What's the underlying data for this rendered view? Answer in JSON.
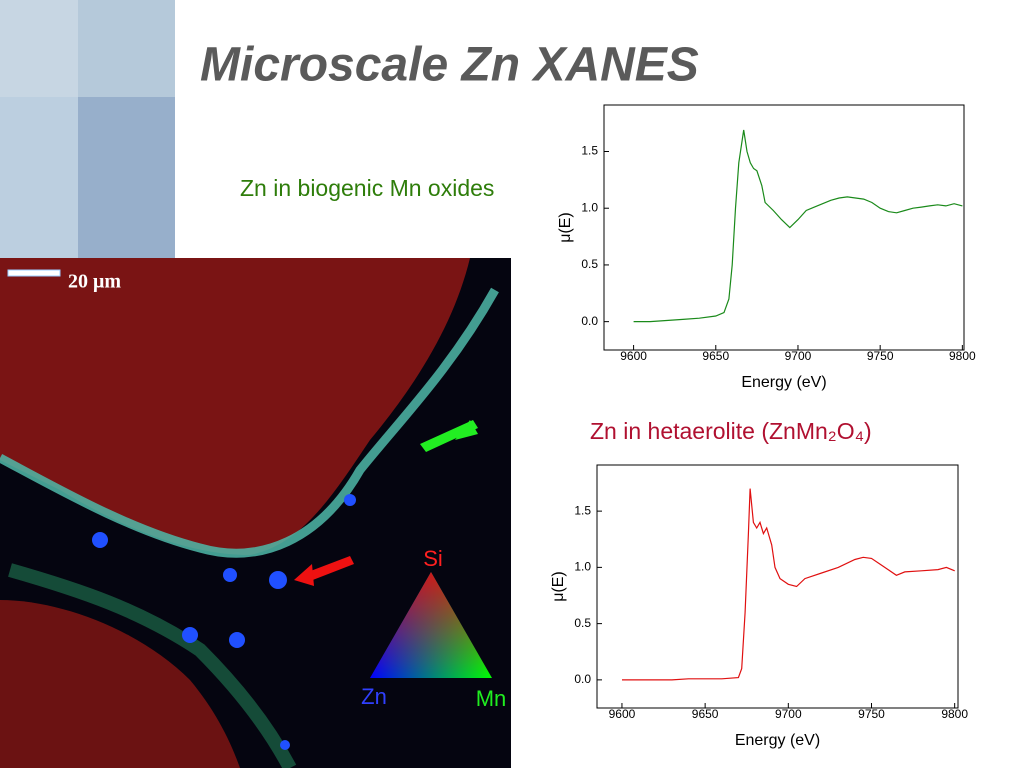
{
  "slide": {
    "title": "Microscale Zn XANES"
  },
  "image": {
    "scale_bar": "20 μm",
    "triangle_labels": [
      "Si",
      "Zn",
      "Mn"
    ]
  },
  "chart_data": [
    {
      "type": "line",
      "title": "Zn in biogenic Mn oxides",
      "x_label": "Energy (eV)",
      "y_label": "μ(E)",
      "x": [
        9600,
        9610,
        9620,
        9630,
        9640,
        9650,
        9655,
        9658,
        9660,
        9662,
        9664,
        9667,
        9669,
        9671,
        9673,
        9675,
        9678,
        9680,
        9685,
        9690,
        9695,
        9700,
        9705,
        9710,
        9715,
        9720,
        9725,
        9730,
        9735,
        9740,
        9745,
        9750,
        9755,
        9760,
        9765,
        9770,
        9775,
        9780,
        9785,
        9790,
        9795,
        9800
      ],
      "series": [
        {
          "color": "#1a8a1a",
          "values": [
            0.0,
            0.0,
            0.01,
            0.02,
            0.03,
            0.05,
            0.08,
            0.2,
            0.5,
            1.0,
            1.4,
            1.69,
            1.5,
            1.4,
            1.35,
            1.33,
            1.2,
            1.05,
            0.98,
            0.9,
            0.83,
            0.9,
            0.98,
            1.01,
            1.04,
            1.07,
            1.09,
            1.1,
            1.09,
            1.08,
            1.05,
            1.0,
            0.97,
            0.96,
            0.98,
            1.0,
            1.01,
            1.02,
            1.03,
            1.02,
            1.04,
            1.02
          ]
        }
      ],
      "xlim": [
        9582,
        9801
      ],
      "ylim": [
        -0.25,
        1.91
      ],
      "xticks": [
        9600,
        9650,
        9700,
        9750,
        9800
      ],
      "yticks": [
        {
          "value": 0,
          "label": "0.0"
        },
        0.5,
        {
          "value": 1,
          "label": "1.0"
        },
        1.5
      ]
    },
    {
      "type": "line",
      "title": "Zn in hetaerolite (ZnMn₂O₄)",
      "x_label": "Energy (eV)",
      "y_label": "μ(E)",
      "x": [
        9600,
        9610,
        9620,
        9630,
        9640,
        9650,
        9660,
        9670,
        9672,
        9674,
        9676,
        9677,
        9679,
        9681,
        9683,
        9685,
        9687,
        9690,
        9692,
        9695,
        9700,
        9705,
        9710,
        9720,
        9730,
        9740,
        9745,
        9750,
        9755,
        9760,
        9765,
        9770,
        9780,
        9790,
        9795,
        9800
      ],
      "series": [
        {
          "color": "#e01010",
          "values": [
            0.0,
            0.0,
            0.0,
            0.0,
            0.01,
            0.01,
            0.01,
            0.02,
            0.1,
            0.6,
            1.3,
            1.7,
            1.4,
            1.35,
            1.4,
            1.3,
            1.35,
            1.2,
            1.0,
            0.9,
            0.85,
            0.83,
            0.9,
            0.95,
            1.0,
            1.07,
            1.09,
            1.08,
            1.03,
            0.98,
            0.93,
            0.96,
            0.97,
            0.98,
            1.0,
            0.97
          ]
        }
      ],
      "xlim": [
        9585,
        9802
      ],
      "ylim": [
        -0.25,
        1.91
      ],
      "xticks": [
        9600,
        9650,
        9700,
        9750,
        9800
      ],
      "yticks": [
        {
          "value": 0,
          "label": "0.0"
        },
        0.5,
        {
          "value": 1,
          "label": "1.0"
        },
        1.5
      ]
    }
  ]
}
